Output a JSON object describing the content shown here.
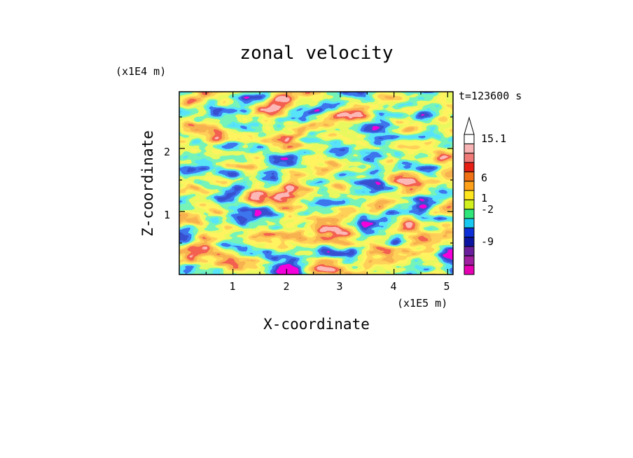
{
  "chart_data": {
    "type": "heatmap",
    "title": "zonal velocity",
    "xlabel": "X-coordinate",
    "ylabel": "Z-coordinate",
    "x_scale_label": "(x1E5 m)",
    "y_scale_label": "(x1E4 m)",
    "time_label": "t=123600 s",
    "xlim": [
      0,
      5.1
    ],
    "ylim": [
      0,
      2.9
    ],
    "x_ticks": [
      "1",
      "2",
      "3",
      "4",
      "5"
    ],
    "y_ticks": [
      "1",
      "2"
    ],
    "colorbar": {
      "levels": [
        -15,
        -12,
        -9,
        -6,
        -2,
        -1,
        0,
        1,
        2,
        4,
        6,
        8,
        10,
        12,
        15.1
      ],
      "labeled_levels": [
        "15.1",
        "6",
        "1",
        "-2",
        "-9"
      ],
      "colors": [
        "#e600b4",
        "#a01ea0",
        "#6a1e9c",
        "#0a14a0",
        "#0d2fd8",
        "#19c8f0",
        "#2ee67a",
        "#d2f01e",
        "#ffe61e",
        "#ffa019",
        "#f07014",
        "#e61e14",
        "#f07a78",
        "#f8b4b4",
        "#ffffff"
      ]
    },
    "grid": false
  }
}
